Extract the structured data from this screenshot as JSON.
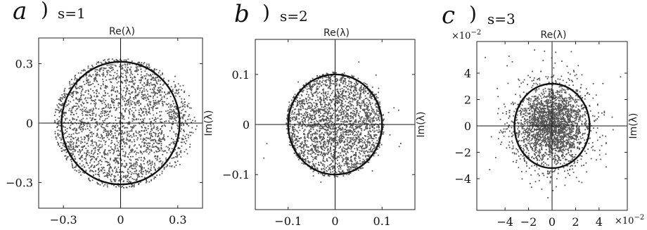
{
  "chart_data": [
    {
      "type": "scatter",
      "panel_label": "a",
      "title": "s=1",
      "xlabel": "Re(λ)",
      "ylabel": "Im(λ)",
      "xlim": [
        -0.43,
        0.43
      ],
      "ylim": [
        -0.43,
        0.43
      ],
      "x_ticks": [
        -0.3,
        0,
        0.3
      ],
      "y_ticks": [
        -0.3,
        0,
        0.3
      ],
      "x_tick_labels": [
        "−0.3",
        "0",
        "0.3"
      ],
      "y_tick_labels": [
        "−0.3",
        "0",
        "0.3"
      ],
      "circle_radius": 0.31,
      "point_count": 2600,
      "point_cloud": {
        "center": [
          0,
          0
        ],
        "radius": 0.35,
        "extent_right": 0.41,
        "extent_top": 0.33,
        "distribution": "dense disk with bulge to the right"
      }
    },
    {
      "type": "scatter",
      "panel_label": "b",
      "title": "s=2",
      "xlabel": "Re(λ)",
      "ylabel": "Im(λ)",
      "xlim": [
        -0.17,
        0.17
      ],
      "ylim": [
        -0.17,
        0.17
      ],
      "x_ticks": [
        -0.1,
        0,
        0.1
      ],
      "y_ticks": [
        -0.1,
        0,
        0.1
      ],
      "x_tick_labels": [
        "−0.1",
        "0",
        "0.1"
      ],
      "y_tick_labels": [
        "−0.1",
        "0",
        "0.1"
      ],
      "circle_radius": 0.1,
      "point_count": 2600,
      "point_cloud": {
        "center": [
          0,
          0
        ],
        "radius": 0.105,
        "extent_right": 0.15,
        "extent_top": 0.14,
        "distribution": "dense disk with scattered outliers, right-skewed"
      }
    },
    {
      "type": "scatter",
      "panel_label": "c",
      "title": "s=3",
      "xlabel": "Re(λ)",
      "ylabel": "Im(λ)",
      "x_multiplier": "×10",
      "x_multiplier_exp": "−2",
      "y_multiplier": "×10",
      "y_multiplier_exp": "−2",
      "xlim": [
        -6.4,
        6.4
      ],
      "ylim": [
        -6.4,
        6.4
      ],
      "x_ticks": [
        -4,
        -2,
        0,
        2,
        4
      ],
      "y_ticks": [
        -4,
        -2,
        0,
        2,
        4
      ],
      "x_tick_labels": [
        "−4",
        "−2",
        "0",
        "2",
        "4"
      ],
      "y_tick_labels": [
        "−4",
        "−2",
        "0",
        "2",
        "4"
      ],
      "circle_radius": 3.2,
      "point_count": 2600,
      "point_cloud": {
        "center": [
          0,
          0
        ],
        "radius": 4.8,
        "extent_right": 6.0,
        "extent_top": 5.8,
        "distribution": "gaussian-like core with heavy tails"
      }
    }
  ]
}
